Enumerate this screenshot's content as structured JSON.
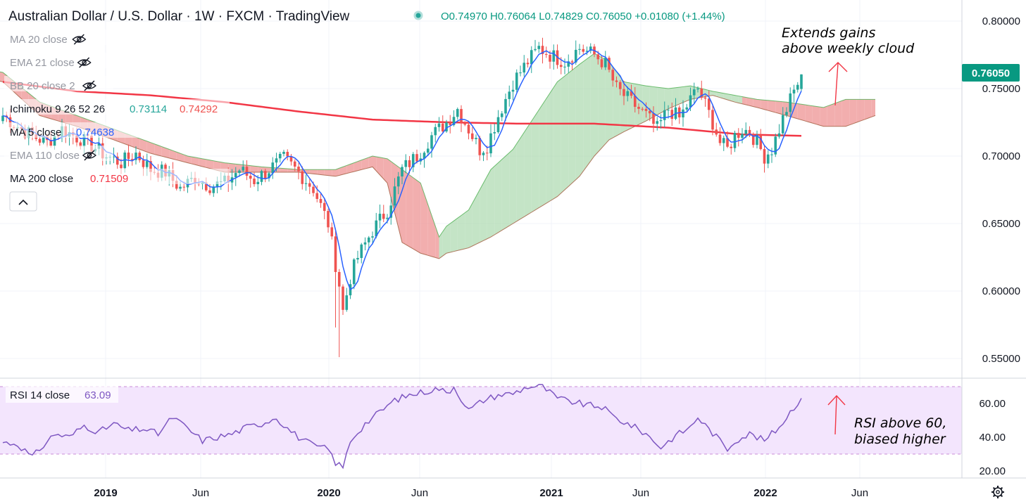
{
  "header": {
    "title": "Australian Dollar / U.S. Dollar · 1W · FXCM · TradingView",
    "ohlc": "O0.74970 H0.76064 L0.74829 C0.76050 +0.01080 (+1.44%)"
  },
  "indicators": [
    {
      "label": "MA 20 close",
      "value": "",
      "hidden": true
    },
    {
      "label": "EMA 21 close",
      "value": "",
      "hidden": true
    },
    {
      "label": "BB 20 close 2",
      "value": "",
      "hidden": true
    },
    {
      "label": "Ichimoku 9 26 52 26",
      "value": "0.73114",
      "value2": "0.74292",
      "color": "#26a69a",
      "color2": "#ef5350"
    },
    {
      "label": "MA 5 close",
      "value": "0.74638",
      "color": "#2962ff"
    },
    {
      "label": "EMA 110 close",
      "value": "",
      "hidden": true
    },
    {
      "label": "MA 200 close",
      "value": "0.71509",
      "color": "#f23645"
    }
  ],
  "rsi_legend": {
    "label": "RSI 14 close",
    "value": "63.09"
  },
  "annotations": {
    "top_line1": "Extends gains",
    "top_line2": "above weekly cloud",
    "rsi_line1": "RSI above 60,",
    "rsi_line2": "biased higher"
  },
  "last_price": "0.76050",
  "colors": {
    "up": "#26a69a",
    "down": "#ef5350",
    "cloud_up": "#a5d6a7",
    "cloud_down": "#ef9a9a",
    "ma200": "#f23645",
    "ma5": "#2962ff",
    "rsi": "#7e57c2",
    "rsi_band": "#f3e5fd",
    "annotation_arrow": "#f23645"
  },
  "chart_data": [
    {
      "type": "candlestick",
      "title": "Australian Dollar / U.S. Dollar · 1W · FXCM · TradingView",
      "x_ticks": [
        "2019",
        "Jun",
        "2020",
        "Jun",
        "2021",
        "Jun",
        "2022",
        "Jun"
      ],
      "y_ticks": [
        "0.80000",
        "0.75000",
        "0.70000",
        "0.65000",
        "0.60000",
        "0.55000"
      ],
      "ylim": [
        0.54,
        0.805
      ],
      "weeks": [
        "2018-W45",
        "2022-W14"
      ],
      "close_anchors": [
        [
          0,
          0.73
        ],
        [
          4,
          0.722
        ],
        [
          8,
          0.715
        ],
        [
          12,
          0.71
        ],
        [
          16,
          0.72
        ],
        [
          20,
          0.714
        ],
        [
          24,
          0.708
        ],
        [
          28,
          0.7
        ],
        [
          32,
          0.695
        ],
        [
          36,
          0.702
        ],
        [
          40,
          0.69
        ],
        [
          44,
          0.688
        ],
        [
          48,
          0.676
        ],
        [
          52,
          0.684
        ],
        [
          56,
          0.678
        ],
        [
          60,
          0.68
        ],
        [
          64,
          0.69
        ],
        [
          68,
          0.682
        ],
        [
          72,
          0.69
        ],
        [
          76,
          0.698
        ],
        [
          80,
          0.688
        ],
        [
          84,
          0.676
        ],
        [
          88,
          0.65
        ],
        [
          90,
          0.62
        ],
        [
          91,
          0.605
        ],
        [
          92,
          0.585
        ],
        [
          94,
          0.61
        ],
        [
          96,
          0.625
        ],
        [
          100,
          0.645
        ],
        [
          104,
          0.66
        ],
        [
          108,
          0.69
        ],
        [
          112,
          0.7
        ],
        [
          116,
          0.715
        ],
        [
          120,
          0.725
        ],
        [
          123,
          0.735
        ],
        [
          126,
          0.72
        ],
        [
          129,
          0.705
        ],
        [
          131,
          0.708
        ],
        [
          134,
          0.73
        ],
        [
          138,
          0.755
        ],
        [
          142,
          0.77
        ],
        [
          145,
          0.78
        ],
        [
          148,
          0.775
        ],
        [
          152,
          0.77
        ],
        [
          156,
          0.78
        ],
        [
          160,
          0.775
        ],
        [
          163,
          0.768
        ],
        [
          166,
          0.75
        ],
        [
          170,
          0.74
        ],
        [
          174,
          0.73
        ],
        [
          177,
          0.72
        ],
        [
          180,
          0.735
        ],
        [
          183,
          0.728
        ],
        [
          186,
          0.742
        ],
        [
          188,
          0.75
        ],
        [
          190,
          0.738
        ],
        [
          192,
          0.725
        ],
        [
          194,
          0.71
        ],
        [
          196,
          0.705
        ],
        [
          198,
          0.715
        ],
        [
          200,
          0.72
        ],
        [
          202,
          0.718
        ],
        [
          204,
          0.71
        ],
        [
          206,
          0.7
        ],
        [
          208,
          0.705
        ],
        [
          210,
          0.72
        ],
        [
          212,
          0.735
        ],
        [
          214,
          0.748
        ],
        [
          216,
          0.76
        ]
      ],
      "ichimoku_cloud_anchors": [
        [
          -26,
          0.775,
          0.77
        ],
        [
          0,
          0.762,
          0.755
        ],
        [
          10,
          0.74,
          0.73
        ],
        [
          20,
          0.73,
          0.722
        ],
        [
          30,
          0.72,
          0.712
        ],
        [
          40,
          0.71,
          0.702
        ],
        [
          50,
          0.7,
          0.695
        ],
        [
          60,
          0.695,
          0.688
        ],
        [
          70,
          0.692,
          0.688
        ],
        [
          80,
          0.69,
          0.688
        ],
        [
          90,
          0.69,
          0.685
        ],
        [
          100,
          0.7,
          0.692
        ],
        [
          104,
          0.698,
          0.68
        ],
        [
          108,
          0.69,
          0.636
        ],
        [
          113,
          0.68,
          0.628
        ],
        [
          118,
          0.64,
          0.624
        ],
        [
          120,
          0.648,
          0.628
        ],
        [
          126,
          0.66,
          0.632
        ],
        [
          132,
          0.69,
          0.64
        ],
        [
          138,
          0.705,
          0.65
        ],
        [
          144,
          0.73,
          0.66
        ],
        [
          150,
          0.755,
          0.67
        ],
        [
          156,
          0.768,
          0.685
        ],
        [
          160,
          0.776,
          0.7
        ],
        [
          164,
          0.77,
          0.712
        ],
        [
          168,
          0.755,
          0.718
        ],
        [
          174,
          0.752,
          0.726
        ],
        [
          180,
          0.75,
          0.735
        ],
        [
          186,
          0.752,
          0.742
        ],
        [
          192,
          0.748,
          0.745
        ],
        [
          198,
          0.745,
          0.74
        ],
        [
          204,
          0.742,
          0.736
        ],
        [
          212,
          0.74,
          0.73
        ],
        [
          222,
          0.736,
          0.722
        ],
        [
          228,
          0.742,
          0.722
        ],
        [
          236,
          0.742,
          0.73
        ]
      ],
      "ma200_anchors": [
        [
          0,
          0.755
        ],
        [
          20,
          0.748
        ],
        [
          40,
          0.745
        ],
        [
          60,
          0.74
        ],
        [
          80,
          0.733
        ],
        [
          100,
          0.727
        ],
        [
          120,
          0.725
        ],
        [
          140,
          0.724
        ],
        [
          160,
          0.724
        ],
        [
          180,
          0.721
        ],
        [
          200,
          0.716
        ],
        [
          216,
          0.715
        ]
      ],
      "last_close": 0.7605
    },
    {
      "type": "line",
      "title": "RSI 14 close",
      "y_ticks": [
        "60.00",
        "40.00",
        "20.00"
      ],
      "ylim": [
        19,
        73
      ],
      "bands": [
        30,
        70
      ],
      "anchors": [
        [
          0,
          37
        ],
        [
          4,
          36
        ],
        [
          8,
          28
        ],
        [
          10,
          33
        ],
        [
          14,
          42
        ],
        [
          18,
          40
        ],
        [
          22,
          47
        ],
        [
          26,
          43
        ],
        [
          30,
          48
        ],
        [
          34,
          44
        ],
        [
          38,
          45
        ],
        [
          42,
          42
        ],
        [
          46,
          52
        ],
        [
          50,
          45
        ],
        [
          54,
          38
        ],
        [
          58,
          40
        ],
        [
          62,
          42
        ],
        [
          66,
          46
        ],
        [
          70,
          48
        ],
        [
          74,
          52
        ],
        [
          76,
          47
        ],
        [
          80,
          40
        ],
        [
          84,
          35
        ],
        [
          88,
          33
        ],
        [
          90,
          25
        ],
        [
          92,
          22
        ],
        [
          94,
          38
        ],
        [
          98,
          48
        ],
        [
          102,
          55
        ],
        [
          106,
          62
        ],
        [
          110,
          65
        ],
        [
          114,
          67
        ],
        [
          118,
          69
        ],
        [
          120,
          66
        ],
        [
          122,
          70
        ],
        [
          126,
          56
        ],
        [
          130,
          62
        ],
        [
          134,
          65
        ],
        [
          138,
          66
        ],
        [
          142,
          70
        ],
        [
          146,
          70
        ],
        [
          150,
          63
        ],
        [
          154,
          61
        ],
        [
          158,
          59
        ],
        [
          162,
          58
        ],
        [
          166,
          51
        ],
        [
          170,
          47
        ],
        [
          174,
          42
        ],
        [
          178,
          34
        ],
        [
          182,
          41
        ],
        [
          186,
          46
        ],
        [
          188,
          52
        ],
        [
          190,
          47
        ],
        [
          194,
          38
        ],
        [
          196,
          33
        ],
        [
          198,
          38
        ],
        [
          202,
          42
        ],
        [
          206,
          38
        ],
        [
          210,
          46
        ],
        [
          214,
          58
        ],
        [
          216,
          63.09
        ]
      ],
      "last_value": 63.09
    }
  ]
}
